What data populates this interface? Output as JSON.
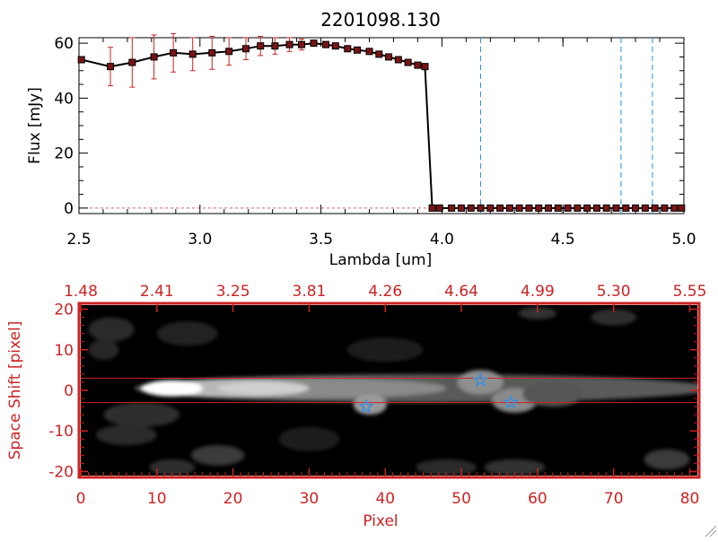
{
  "title": "2201098.130",
  "colors": {
    "axis": "#000000",
    "red": "#cc2222",
    "marker": "#7a1414",
    "blue_dash": "#2a8fd8",
    "star": "#3a8fe0",
    "image_bg": "#000000"
  },
  "chart_data": [
    {
      "type": "line",
      "title": "2201098.130",
      "xlabel": "Lambda [um]",
      "ylabel": "Flux [mJy]",
      "xlim": [
        2.5,
        5.0
      ],
      "ylim": [
        -2,
        62
      ],
      "xticks": [
        "2.5",
        "3.0",
        "3.5",
        "4.0",
        "4.5",
        "5.0"
      ],
      "yticks": [
        "0",
        "20",
        "40",
        "60"
      ],
      "x": [
        2.51,
        2.63,
        2.72,
        2.81,
        2.89,
        2.97,
        3.05,
        3.12,
        3.19,
        3.25,
        3.31,
        3.37,
        3.42,
        3.47,
        3.52,
        3.56,
        3.61,
        3.65,
        3.7,
        3.74,
        3.78,
        3.82,
        3.86,
        3.9,
        3.93,
        3.96,
        3.99,
        4.04,
        4.08,
        4.12,
        4.16,
        4.2,
        4.24,
        4.28,
        4.32,
        4.36,
        4.4,
        4.44,
        4.48,
        4.52,
        4.56,
        4.6,
        4.64,
        4.68,
        4.72,
        4.76,
        4.8,
        4.84,
        4.88,
        4.92,
        4.96,
        4.99
      ],
      "y": [
        54,
        51.5,
        53,
        55,
        56.5,
        56,
        56.5,
        57,
        58,
        59,
        59,
        59.5,
        59.5,
        60,
        59.5,
        59,
        58,
        57.5,
        57,
        56,
        55,
        54,
        53,
        52,
        51.5,
        0,
        0,
        0,
        0,
        0,
        0,
        0,
        0,
        0,
        0,
        0,
        0,
        0,
        0,
        0,
        0,
        0,
        0,
        0,
        0,
        0,
        0,
        0,
        0,
        0,
        0,
        0
      ],
      "yerr": [
        0,
        7,
        9,
        8,
        7,
        6,
        6,
        5,
        4,
        3.5,
        3,
        2.5,
        2,
        1,
        1,
        0,
        0,
        0,
        0,
        0,
        0,
        0,
        0,
        0,
        0,
        0,
        0,
        0,
        0,
        0,
        0,
        0,
        0,
        0,
        0,
        0,
        0,
        0,
        0,
        0,
        0,
        0,
        0,
        0,
        0,
        0,
        0,
        0,
        0,
        0,
        0,
        0
      ],
      "vlines": [
        4.16,
        4.74,
        4.87
      ]
    },
    {
      "type": "heatmap",
      "xlabel": "Pixel",
      "ylabel": "Space Shift [pixel]",
      "xlim": [
        0,
        81
      ],
      "ylim": [
        -21,
        21
      ],
      "xticks": [
        "0",
        "10",
        "20",
        "30",
        "40",
        "50",
        "60",
        "70",
        "80"
      ],
      "yticks": [
        "-20",
        "-10",
        "0",
        "10",
        "20"
      ],
      "top_ticks": [
        "1.48",
        "2.41",
        "3.25",
        "3.81",
        "4.26",
        "4.64",
        "4.99",
        "5.30",
        "5.55"
      ],
      "hlines": [
        3,
        -3
      ],
      "stars": [
        {
          "x": 37.5,
          "y": -4
        },
        {
          "x": 52.5,
          "y": 2.5
        },
        {
          "x": 56.5,
          "y": -3
        }
      ]
    }
  ]
}
